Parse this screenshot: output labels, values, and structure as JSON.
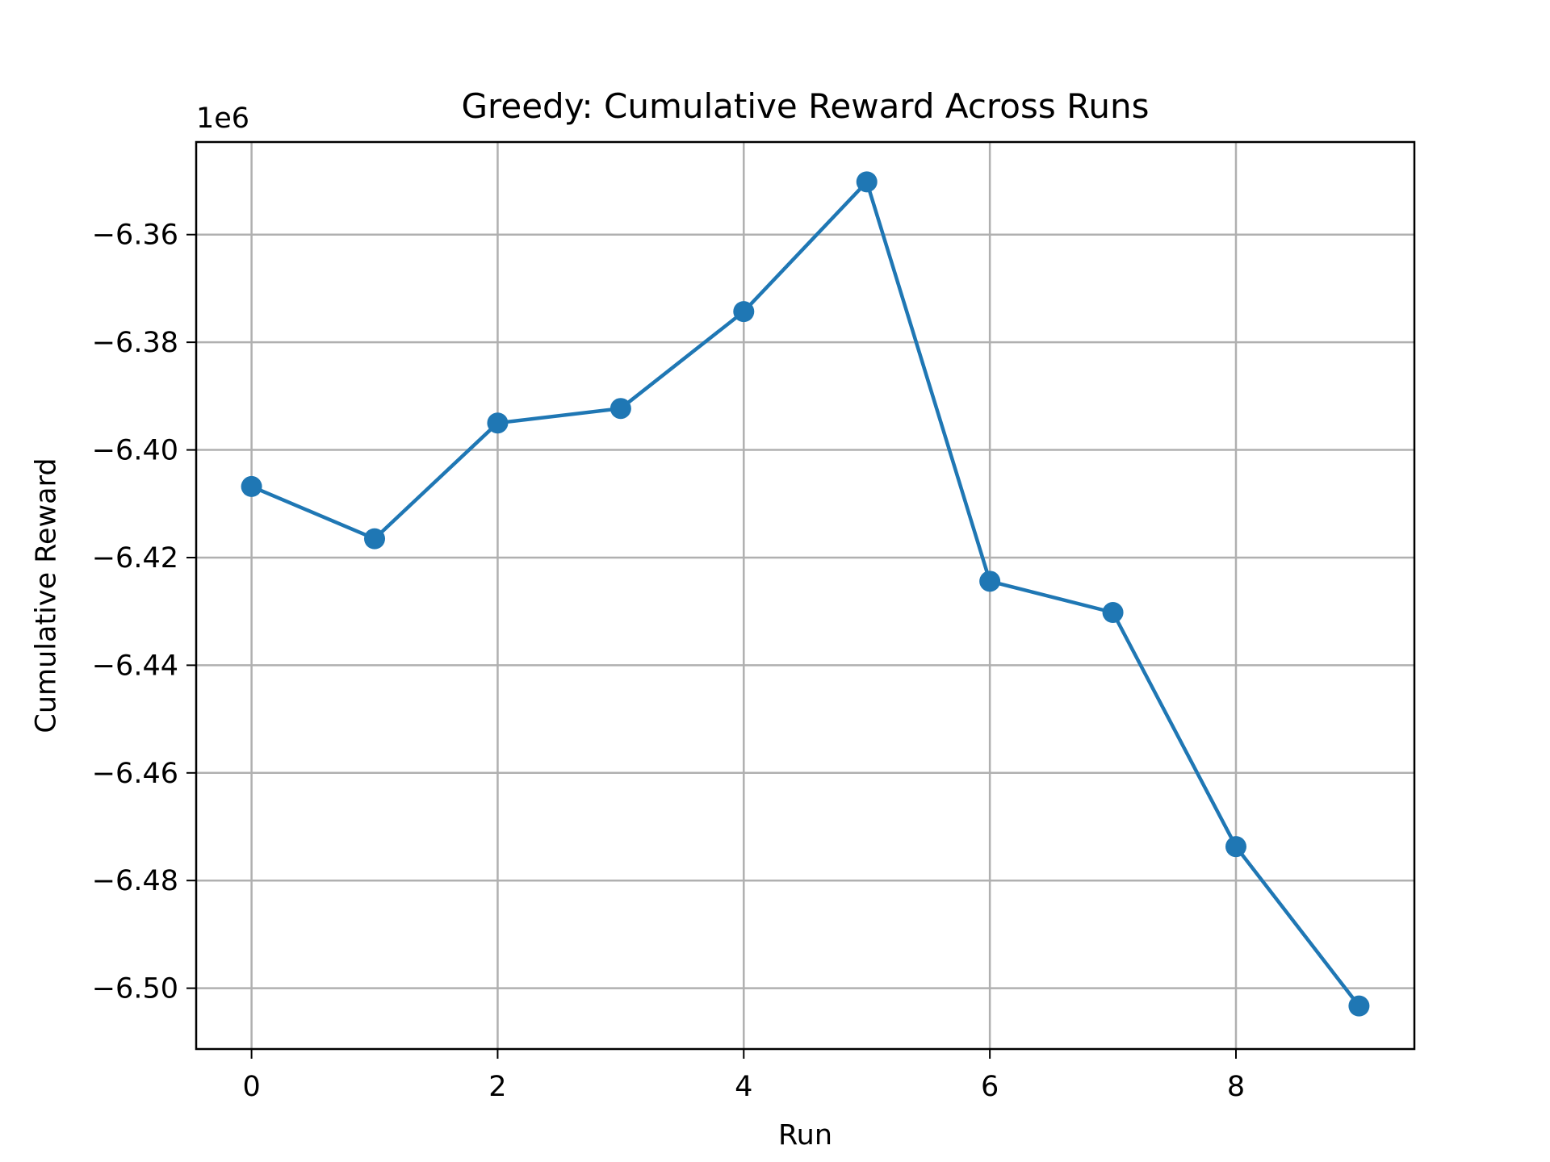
{
  "chart_data": {
    "type": "line",
    "title": "Greedy: Cumulative Reward Across Runs",
    "xlabel": "Run",
    "ylabel": "Cumulative Reward",
    "offset_text": "1e6",
    "x": [
      0,
      1,
      2,
      3,
      4,
      5,
      6,
      7,
      8,
      9
    ],
    "series": [
      {
        "values": [
          -6.4068,
          -6.4165,
          -6.395,
          -6.3923,
          -6.3743,
          -6.3502,
          -6.4244,
          -6.4302,
          -6.4737,
          -6.5033
        ],
        "color": "#1f77b4"
      }
    ],
    "xticks": [
      0,
      2,
      4,
      6,
      8
    ],
    "xtick_labels": [
      "0",
      "2",
      "4",
      "6",
      "8"
    ],
    "yticks": [
      -6.36,
      -6.38,
      -6.4,
      -6.42,
      -6.44,
      -6.46,
      -6.48,
      -6.5
    ],
    "ytick_labels": [
      "−6.36",
      "−6.38",
      "−6.40",
      "−6.42",
      "−6.44",
      "−6.46",
      "−6.48",
      "−6.50"
    ],
    "xlim": [
      -0.45,
      9.45
    ],
    "ylim": [
      -6.5113,
      -6.3428
    ],
    "grid": true,
    "markers": true
  }
}
